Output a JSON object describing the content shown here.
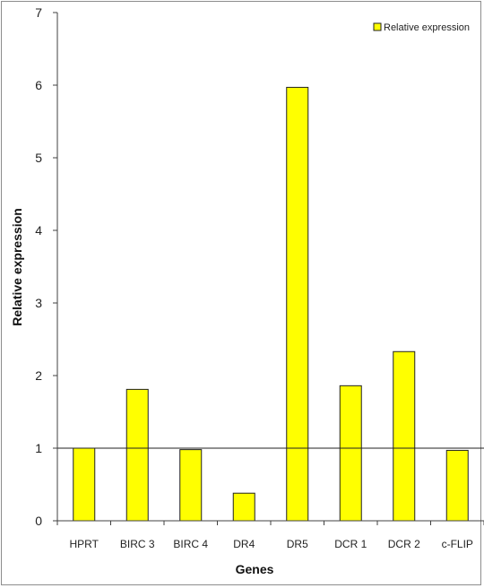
{
  "chart_data": {
    "type": "bar",
    "categories": [
      "HPRT",
      "BIRC 3",
      "BIRC 4",
      "DR4",
      "DR5",
      "DCR 1",
      "DCR 2",
      "c-FLIP"
    ],
    "series": [
      {
        "name": "Relative expression",
        "values": [
          1.0,
          1.81,
          0.98,
          0.38,
          5.97,
          1.86,
          2.33,
          0.97
        ]
      }
    ],
    "xlabel": "Genes",
    "ylabel": "Relative expression",
    "ylim": [
      0,
      7
    ],
    "yticks": [
      0,
      1,
      2,
      3,
      4,
      5,
      6,
      7
    ],
    "reference_line": 1,
    "grid": false,
    "legend_position": "top-right",
    "colors": {
      "bar_fill": "#ffff00",
      "bar_stroke": "#222222",
      "axis": "#404040",
      "frame": "#8c8c8c"
    }
  }
}
